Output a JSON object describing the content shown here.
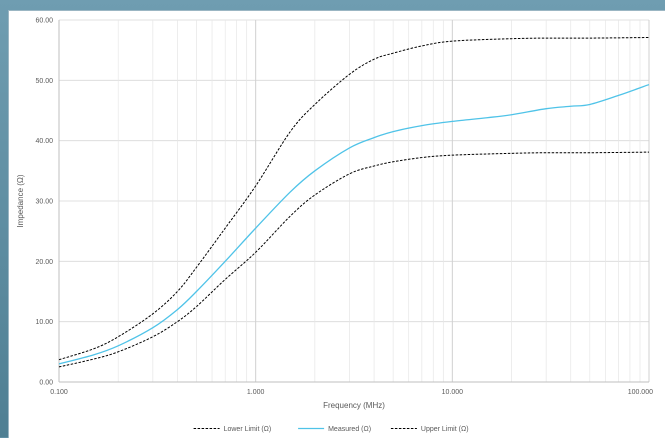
{
  "chart_data": {
    "type": "line",
    "title": "",
    "xlabel": "Frequency (MHz)",
    "ylabel": "Impedance (Ω)",
    "x_scale": "log",
    "xlim": [
      0.1,
      100
    ],
    "ylim": [
      0,
      60
    ],
    "x_ticks": [
      0.1,
      1,
      10,
      100
    ],
    "x_tick_labels": [
      "0.100",
      "1.000",
      "10.000",
      "100.000"
    ],
    "y_ticks": [
      0,
      10,
      20,
      30,
      40,
      50,
      60
    ],
    "y_tick_labels": [
      "0.00",
      "10.00",
      "20.00",
      "30.00",
      "40.00",
      "50.00",
      "60.00"
    ],
    "grid": true,
    "legend_position": "bottom",
    "series": [
      {
        "name": "Lower Limit (Ω)",
        "color": "#000000",
        "dash": "dashed",
        "x": [
          0.1,
          0.15,
          0.2,
          0.3,
          0.4,
          0.5,
          0.7,
          1,
          1.5,
          2,
          3,
          4,
          5,
          7,
          10,
          20,
          30,
          50,
          100
        ],
        "values": [
          2.5,
          3.8,
          5.0,
          7.5,
          10.0,
          12.5,
          17.0,
          21.5,
          27.5,
          31.0,
          34.5,
          35.8,
          36.5,
          37.2,
          37.6,
          37.9,
          38.0,
          38.0,
          38.1
        ]
      },
      {
        "name": "Measured (Ω)",
        "color": "#4fc3e8",
        "dash": "solid",
        "x": [
          0.1,
          0.15,
          0.2,
          0.3,
          0.4,
          0.5,
          0.7,
          1,
          1.5,
          2,
          3,
          4,
          5,
          7,
          10,
          15,
          20,
          30,
          40,
          50,
          70,
          100
        ],
        "values": [
          3.0,
          4.5,
          6.0,
          9.0,
          12.0,
          15.0,
          20.0,
          25.5,
          31.5,
          35.0,
          38.8,
          40.5,
          41.5,
          42.5,
          43.2,
          43.8,
          44.3,
          45.3,
          45.7,
          46.0,
          47.5,
          49.3
        ]
      },
      {
        "name": "Upper Limit (Ω)",
        "color": "#000000",
        "dash": "dashed",
        "x": [
          0.1,
          0.15,
          0.2,
          0.3,
          0.4,
          0.5,
          0.7,
          1,
          1.5,
          2,
          3,
          4,
          5,
          7,
          10,
          20,
          30,
          50,
          100
        ],
        "values": [
          3.7,
          5.5,
          7.5,
          11.3,
          15.0,
          19.0,
          25.5,
          32.5,
          41.5,
          46.0,
          51.0,
          53.5,
          54.5,
          55.7,
          56.5,
          56.9,
          57.0,
          57.0,
          57.1
        ]
      }
    ]
  }
}
